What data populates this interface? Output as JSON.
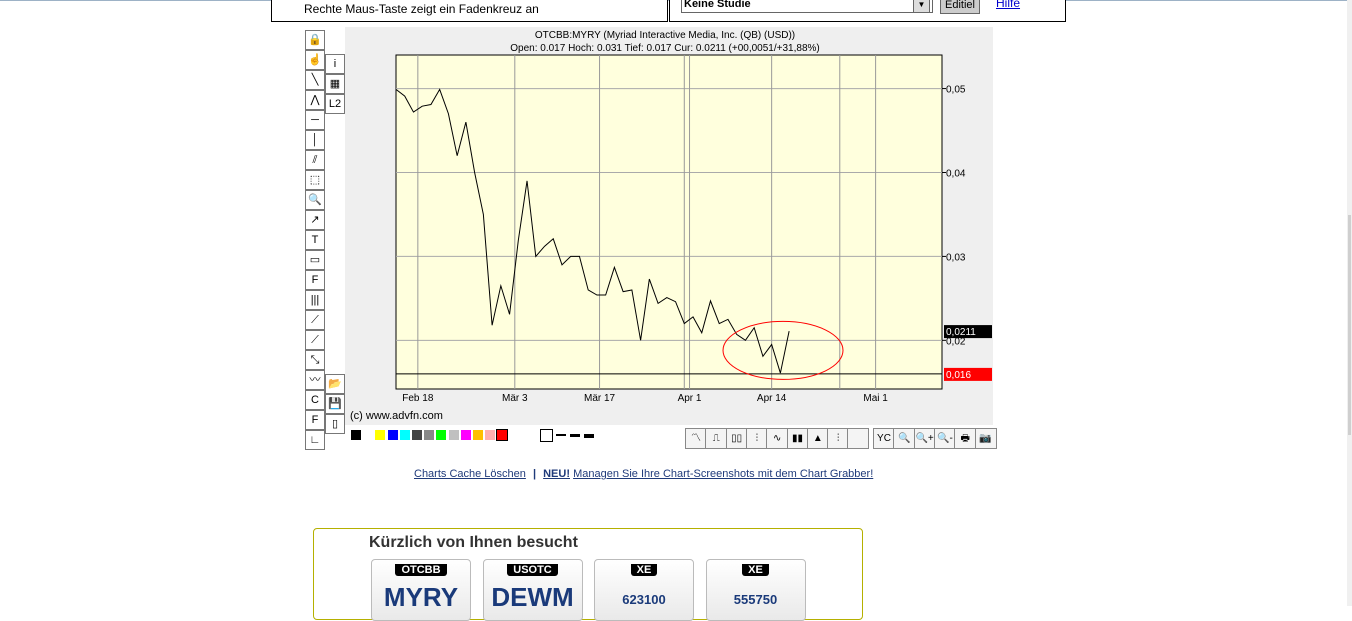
{
  "header": {
    "hint": "Rechte Maus-Taste zeigt ein Fadenkreuz an",
    "study_select": "Keine Studie",
    "edit_button": "Editiel",
    "help_link": "Hilfe"
  },
  "chart_data": {
    "type": "line",
    "title": "OTCBB:MYRY (Myriad Interactive Media, Inc. (QB) (USD))",
    "subtitle": "Open: 0.017 Hoch: 0.031 Tief: 0.017 Cur: 0.0211 (+00,0051/+31,88%)",
    "values": [
      0.0499,
      0.0491,
      0.0472,
      0.0479,
      0.0481,
      0.0499,
      0.047,
      0.042,
      0.046,
      0.04,
      0.035,
      0.0218,
      0.0265,
      0.0231,
      0.0319,
      0.039,
      0.03,
      0.0312,
      0.0321,
      0.029,
      0.03,
      0.03,
      0.026,
      0.0254,
      0.0254,
      0.0287,
      0.0258,
      0.026,
      0.02,
      0.0273,
      0.0244,
      0.0251,
      0.0246,
      0.022,
      0.0228,
      0.0209,
      0.0247,
      0.022,
      0.0225,
      0.0207,
      0.02,
      0.0215,
      0.0181,
      0.0195,
      0.0161,
      0.0211
    ],
    "x_ticks": [
      {
        "label": "Feb 18",
        "at": 2.5
      },
      {
        "label": "Mär 3",
        "at": 13.6
      },
      {
        "label": "Mär 17",
        "at": 23.3
      },
      {
        "label": "Apr 1",
        "at": 33.6
      },
      {
        "label": "Apr 14",
        "at": 43
      },
      {
        "label": "Mai 1",
        "at": 54.9
      }
    ],
    "y_ticks": [
      "0,05",
      "0,04",
      "0,03",
      "0,02"
    ],
    "y_tick_values": [
      0.05,
      0.04,
      0.03,
      0.02
    ],
    "ylim": [
      0.0142,
      0.054
    ],
    "xlim": [
      0,
      62.5
    ],
    "grid": true,
    "current_label": "0,0211",
    "current_value": 0.0211,
    "low_label": "0,016",
    "low_value": 0.016,
    "colors": {
      "background": "#ffffdd",
      "line": "#000000",
      "highlight": "#ff0000"
    },
    "copyright": "(c) www.advfn.com"
  },
  "palette": [
    "#000000",
    "#ffffff",
    "#ffff00",
    "#0000ff",
    "#00ffff",
    "#444444",
    "#888888",
    "#00ff00",
    "#c0c0c0",
    "#ff00ff",
    "#ffc000",
    "#ffb0b0",
    "#ff0000"
  ],
  "links": {
    "cache": "Charts Cache Löschen",
    "sep": "|",
    "new": "NEU!",
    "grabber": "Managen Sie Ihre Chart-Screenshots mit dem Chart Grabber!"
  },
  "visited": {
    "title": "Kürzlich von Ihnen besucht",
    "items": [
      {
        "market": "OTCBB",
        "symbol": "MYRY"
      },
      {
        "market": "USOTC",
        "symbol": "DEWM"
      },
      {
        "market": "XE",
        "symbol": "623100"
      },
      {
        "market": "XE",
        "symbol": "555750"
      }
    ]
  }
}
